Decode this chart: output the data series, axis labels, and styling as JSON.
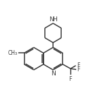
{
  "bg_color": "#ffffff",
  "bond_color": "#3a3a3a",
  "bond_width": 1.1,
  "font_size": 6.5,
  "fig_width": 1.28,
  "fig_height": 1.43,
  "dpi": 100,
  "xlim": [
    0,
    10
  ],
  "ylim": [
    0,
    11
  ]
}
